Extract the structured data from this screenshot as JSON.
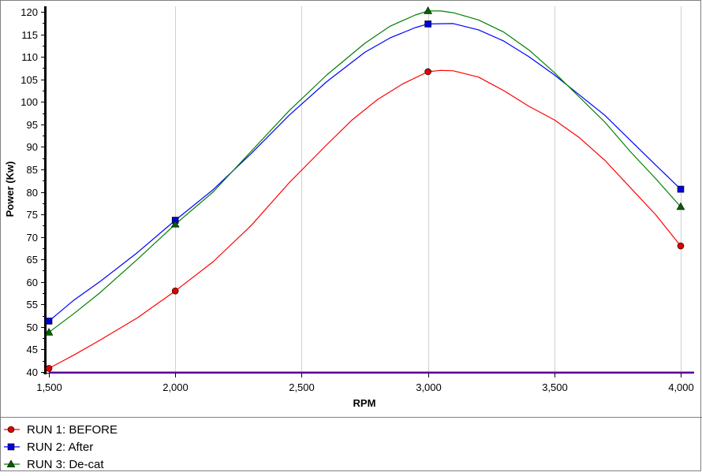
{
  "chart_data": {
    "type": "line",
    "xlabel": "RPM",
    "ylabel": "Power (Kw)",
    "xlim": [
      1500,
      4000
    ],
    "ylim": [
      40,
      120
    ],
    "x_ticks": [
      1500,
      2000,
      2500,
      3000,
      3500,
      4000
    ],
    "x_tick_labels": [
      "1,500",
      "2,000",
      "2,500",
      "3,000",
      "3,500",
      "4,000"
    ],
    "y_ticks": [
      40,
      45,
      50,
      55,
      60,
      65,
      70,
      75,
      80,
      85,
      90,
      95,
      100,
      105,
      110,
      115,
      120
    ],
    "y_tick_labels": [
      "40",
      "45",
      "50",
      "55",
      "60",
      "65",
      "70",
      "75",
      "80",
      "85",
      "90",
      "95",
      "100",
      "105",
      "110",
      "115",
      "120"
    ],
    "grid": "vertical",
    "legend_position": "bottom-left",
    "series": [
      {
        "name": "RUN 1: BEFORE",
        "color": "#ff0000",
        "marker_fill": "#dd0000",
        "marker": "circle",
        "marker_x": [
          1500,
          2000,
          3000,
          4000
        ],
        "x": [
          1500,
          1550,
          1600,
          1700,
          1850,
          2000,
          2150,
          2300,
          2450,
          2600,
          2700,
          2800,
          2900,
          3000,
          3050,
          3100,
          3200,
          3300,
          3400,
          3500,
          3600,
          3700,
          3800,
          3900,
          4000
        ],
        "y": [
          40.8,
          42.3,
          43.8,
          47,
          52,
          58,
          64.5,
          72.5,
          82,
          90.5,
          96,
          100.5,
          104,
          106.7,
          107,
          106.9,
          105.5,
          102.5,
          99,
          96,
          92,
          87,
          81,
          75,
          68
        ]
      },
      {
        "name": "RUN 2: After",
        "color": "#0000ff",
        "marker_fill": "#0000dd",
        "marker": "square",
        "marker_x": [
          1500,
          2000,
          3000,
          4000
        ],
        "x": [
          1500,
          1600,
          1700,
          1850,
          2000,
          2150,
          2300,
          2450,
          2600,
          2750,
          2850,
          2950,
          3000,
          3100,
          3200,
          3300,
          3400,
          3500,
          3600,
          3700,
          3800,
          3900,
          4000
        ],
        "y": [
          51.3,
          56,
          60,
          66.5,
          73.7,
          80.5,
          88.5,
          97,
          104.5,
          111,
          114.2,
          116.5,
          117.3,
          117.4,
          116,
          113.5,
          110,
          106,
          101.5,
          97,
          91.5,
          86,
          80.6
        ]
      },
      {
        "name": "RUN 3: De-cat",
        "color": "#008000",
        "marker_fill": "#006400",
        "marker": "triangle",
        "marker_x": [
          1500,
          2000,
          3000,
          4000
        ],
        "x": [
          1500,
          1600,
          1700,
          1850,
          2000,
          2150,
          2300,
          2450,
          2600,
          2750,
          2850,
          2950,
          3000,
          3050,
          3100,
          3200,
          3300,
          3400,
          3500,
          3600,
          3700,
          3800,
          3900,
          4000
        ],
        "y": [
          48.8,
          53,
          57.5,
          65,
          72.8,
          80,
          89,
          98,
          106,
          113,
          116.8,
          119.3,
          120.2,
          120.2,
          119.8,
          118.2,
          115.5,
          111.5,
          106.5,
          101,
          95.5,
          89,
          83,
          76.7
        ]
      }
    ]
  }
}
